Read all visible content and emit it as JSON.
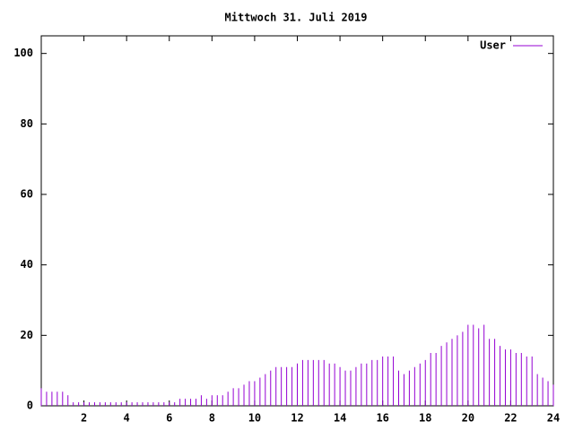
{
  "chart_data": {
    "type": "impulse",
    "title": "Mittwoch 31. Juli 2019",
    "series": [
      {
        "name": "User",
        "color": "#9400d3",
        "values": [
          5,
          4,
          4,
          4,
          4,
          3,
          1,
          1,
          1,
          1,
          1,
          1,
          1,
          1,
          1,
          1,
          1,
          1,
          1,
          1,
          1,
          1,
          1,
          1,
          1,
          1,
          2,
          2,
          2,
          2,
          3,
          2,
          3,
          3,
          3,
          4,
          5,
          5,
          6,
          7,
          7,
          8,
          9,
          10,
          11,
          11,
          11,
          11,
          12,
          13,
          13,
          13,
          13,
          13,
          12,
          12,
          11,
          10,
          10,
          11,
          12,
          12,
          13,
          13,
          14,
          14,
          14,
          10,
          9,
          10,
          11,
          12,
          13,
          15,
          15,
          17,
          18,
          19,
          20,
          21,
          23,
          23,
          22,
          23,
          19,
          19,
          17,
          16,
          16,
          15,
          15,
          14,
          14,
          9,
          8,
          7,
          6
        ]
      }
    ],
    "x": [
      0,
      0.25,
      0.5,
      0.75,
      1,
      1.25,
      1.5,
      1.75,
      2,
      2.25,
      2.5,
      2.75,
      3,
      3.25,
      3.5,
      3.75,
      4,
      4.25,
      4.5,
      4.75,
      5,
      5.25,
      5.5,
      5.75,
      6,
      6.25,
      6.5,
      6.75,
      7,
      7.25,
      7.5,
      7.75,
      8,
      8.25,
      8.5,
      8.75,
      9,
      9.25,
      9.5,
      9.75,
      10,
      10.25,
      10.5,
      10.75,
      11,
      11.25,
      11.5,
      11.75,
      12,
      12.25,
      12.5,
      12.75,
      13,
      13.25,
      13.5,
      13.75,
      14,
      14.25,
      14.5,
      14.75,
      15,
      15.25,
      15.5,
      15.75,
      16,
      16.25,
      16.5,
      16.75,
      17,
      17.25,
      17.5,
      17.75,
      18,
      18.25,
      18.5,
      18.75,
      19,
      19.25,
      19.5,
      19.75,
      20,
      20.25,
      20.5,
      20.75,
      21,
      21.25,
      21.5,
      21.75,
      22,
      22.25,
      22.5,
      22.75,
      23,
      23.25,
      23.5,
      23.75,
      24
    ],
    "xlim": [
      0,
      24
    ],
    "xticks": [
      2,
      4,
      6,
      8,
      10,
      12,
      14,
      16,
      18,
      20,
      22,
      24
    ],
    "ylim": [
      0,
      105
    ],
    "yticks": [
      0,
      20,
      40,
      60,
      80,
      100
    ],
    "grid": false,
    "legend": "top-right"
  }
}
